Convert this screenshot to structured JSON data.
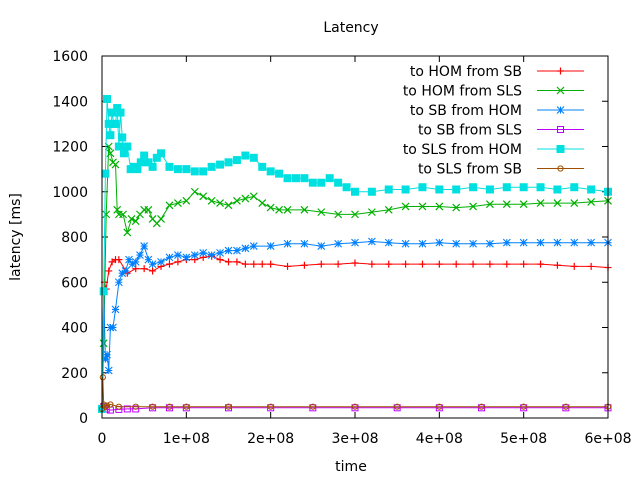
{
  "chart_data": {
    "type": "line",
    "title": "Latency",
    "xlabel": "time",
    "ylabel": "latency [ms]",
    "xlim": [
      0,
      600000000
    ],
    "ylim": [
      0,
      1600
    ],
    "grid": false,
    "legend_position": "top-right",
    "x_ticks": [
      {
        "value": 0,
        "label": "0"
      },
      {
        "value": 100000000,
        "label": "1e+08"
      },
      {
        "value": 200000000,
        "label": "2e+08"
      },
      {
        "value": 300000000,
        "label": "3e+08"
      },
      {
        "value": 400000000,
        "label": "4e+08"
      },
      {
        "value": 500000000,
        "label": "5e+08"
      },
      {
        "value": 600000000,
        "label": "6e+08"
      }
    ],
    "y_ticks": [
      {
        "value": 0,
        "label": "0"
      },
      {
        "value": 200,
        "label": "200"
      },
      {
        "value": 400,
        "label": "400"
      },
      {
        "value": 600,
        "label": "600"
      },
      {
        "value": 800,
        "label": "800"
      },
      {
        "value": 1000,
        "label": "1000"
      },
      {
        "value": 1200,
        "label": "1200"
      },
      {
        "value": 1400,
        "label": "1400"
      },
      {
        "value": 1600,
        "label": "1600"
      }
    ],
    "series": [
      {
        "name": "to HOM from SB",
        "color": "#ff0000",
        "marker": "plus",
        "x": [
          0,
          3000000,
          5000000,
          8000000,
          12000000,
          16000000,
          20000000,
          30000000,
          40000000,
          50000000,
          60000000,
          70000000,
          80000000,
          90000000,
          100000000,
          110000000,
          120000000,
          130000000,
          140000000,
          150000000,
          160000000,
          170000000,
          180000000,
          190000000,
          200000000,
          220000000,
          240000000,
          260000000,
          280000000,
          300000000,
          320000000,
          340000000,
          360000000,
          380000000,
          400000000,
          420000000,
          440000000,
          460000000,
          480000000,
          500000000,
          520000000,
          540000000,
          560000000,
          580000000,
          600000000
        ],
        "values": [
          40,
          600,
          570,
          650,
          690,
          700,
          700,
          640,
          660,
          660,
          650,
          670,
          680,
          690,
          700,
          700,
          710,
          715,
          700,
          690,
          690,
          680,
          680,
          680,
          680,
          670,
          675,
          680,
          680,
          685,
          680,
          680,
          680,
          680,
          680,
          680,
          680,
          680,
          680,
          680,
          680,
          675,
          670,
          670,
          665
        ]
      },
      {
        "name": "to HOM from SLS",
        "color": "#00b000",
        "marker": "x",
        "x": [
          0,
          2000000,
          5000000,
          8000000,
          10000000,
          13000000,
          16000000,
          18000000,
          20000000,
          25000000,
          30000000,
          35000000,
          40000000,
          45000000,
          50000000,
          55000000,
          60000000,
          65000000,
          70000000,
          80000000,
          90000000,
          100000000,
          110000000,
          120000000,
          130000000,
          140000000,
          150000000,
          160000000,
          170000000,
          180000000,
          190000000,
          200000000,
          210000000,
          220000000,
          240000000,
          260000000,
          280000000,
          300000000,
          320000000,
          340000000,
          360000000,
          380000000,
          400000000,
          420000000,
          440000000,
          460000000,
          480000000,
          500000000,
          520000000,
          540000000,
          560000000,
          580000000,
          600000000
        ],
        "values": [
          40,
          330,
          900,
          1200,
          1170,
          1130,
          1120,
          920,
          900,
          900,
          820,
          880,
          870,
          900,
          920,
          920,
          880,
          860,
          880,
          940,
          950,
          960,
          1000,
          980,
          960,
          950,
          940,
          960,
          970,
          980,
          950,
          930,
          920,
          920,
          920,
          910,
          900,
          900,
          910,
          920,
          935,
          935,
          935,
          930,
          935,
          945,
          945,
          945,
          950,
          950,
          950,
          955,
          960
        ]
      },
      {
        "name": "to SB from HOM",
        "color": "#0080ff",
        "marker": "star",
        "x": [
          0,
          2000000,
          4000000,
          6000000,
          8000000,
          10000000,
          13000000,
          16000000,
          20000000,
          24000000,
          28000000,
          32000000,
          36000000,
          40000000,
          45000000,
          50000000,
          55000000,
          60000000,
          70000000,
          80000000,
          90000000,
          100000000,
          110000000,
          120000000,
          130000000,
          140000000,
          150000000,
          160000000,
          170000000,
          180000000,
          200000000,
          220000000,
          240000000,
          260000000,
          280000000,
          300000000,
          320000000,
          340000000,
          360000000,
          380000000,
          400000000,
          420000000,
          440000000,
          460000000,
          480000000,
          500000000,
          520000000,
          540000000,
          560000000,
          580000000,
          600000000
        ],
        "values": [
          40,
          560,
          260,
          280,
          210,
          400,
          400,
          480,
          600,
          640,
          650,
          700,
          680,
          690,
          720,
          760,
          700,
          680,
          690,
          710,
          720,
          710,
          720,
          730,
          720,
          730,
          740,
          740,
          750,
          760,
          760,
          770,
          770,
          760,
          770,
          775,
          780,
          775,
          770,
          770,
          775,
          770,
          770,
          770,
          775,
          775,
          775,
          775,
          775,
          775,
          775
        ]
      },
      {
        "name": "to SB from SLS",
        "color": "#c000ff",
        "marker": "square",
        "x": [
          0,
          2000000,
          5000000,
          10000000,
          20000000,
          30000000,
          40000000,
          60000000,
          80000000,
          100000000,
          150000000,
          200000000,
          250000000,
          300000000,
          350000000,
          400000000,
          450000000,
          500000000,
          550000000,
          600000000
        ],
        "values": [
          40,
          50,
          40,
          35,
          38,
          40,
          40,
          45,
          45,
          45,
          45,
          45,
          45,
          45,
          45,
          45,
          45,
          45,
          45,
          45
        ]
      },
      {
        "name": "to SLS from HOM",
        "color": "#00e0e0",
        "marker": "filled-square",
        "x": [
          0,
          2000000,
          4000000,
          6000000,
          8000000,
          10000000,
          12000000,
          14000000,
          16000000,
          18000000,
          20000000,
          22000000,
          24000000,
          26000000,
          28000000,
          30000000,
          34000000,
          38000000,
          42000000,
          46000000,
          50000000,
          55000000,
          60000000,
          65000000,
          70000000,
          80000000,
          90000000,
          100000000,
          110000000,
          120000000,
          130000000,
          140000000,
          150000000,
          160000000,
          170000000,
          180000000,
          190000000,
          200000000,
          210000000,
          220000000,
          230000000,
          240000000,
          250000000,
          260000000,
          270000000,
          280000000,
          290000000,
          300000000,
          320000000,
          340000000,
          360000000,
          380000000,
          400000000,
          420000000,
          440000000,
          460000000,
          480000000,
          500000000,
          520000000,
          540000000,
          560000000,
          580000000,
          600000000
        ],
        "values": [
          40,
          560,
          1080,
          1410,
          1300,
          1250,
          1350,
          1300,
          1300,
          1370,
          1200,
          1350,
          1240,
          1170,
          1200,
          1200,
          1100,
          1110,
          1100,
          1130,
          1160,
          1130,
          1110,
          1150,
          1170,
          1110,
          1100,
          1100,
          1090,
          1090,
          1110,
          1120,
          1130,
          1140,
          1160,
          1150,
          1110,
          1090,
          1080,
          1060,
          1060,
          1060,
          1040,
          1040,
          1060,
          1040,
          1020,
          1000,
          1000,
          1010,
          1010,
          1020,
          1010,
          1010,
          1020,
          1010,
          1020,
          1020,
          1020,
          1010,
          1020,
          1010,
          1000
        ]
      },
      {
        "name": "to SLS from SB",
        "color": "#a05000",
        "marker": "circle",
        "x": [
          0,
          1000000,
          2000000,
          4000000,
          6000000,
          10000000,
          20000000,
          40000000,
          60000000,
          80000000,
          100000000,
          150000000,
          200000000,
          250000000,
          300000000,
          350000000,
          400000000,
          450000000,
          500000000,
          550000000,
          600000000
        ],
        "values": [
          40,
          180,
          60,
          50,
          55,
          60,
          50,
          50,
          50,
          50,
          50,
          50,
          50,
          50,
          50,
          50,
          50,
          50,
          50,
          50,
          50
        ]
      }
    ]
  }
}
